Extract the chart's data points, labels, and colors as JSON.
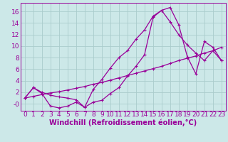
{
  "bg_color": "#cce8e8",
  "line_color": "#990099",
  "grid_color": "#aacccc",
  "xlabel": "Windchill (Refroidissement éolien,°C)",
  "xlim": [
    -0.5,
    23.5
  ],
  "ylim": [
    -1.2,
    17.5
  ],
  "xticks": [
    0,
    1,
    2,
    3,
    4,
    5,
    6,
    7,
    8,
    9,
    10,
    11,
    12,
    13,
    14,
    15,
    16,
    17,
    18,
    19,
    20,
    21,
    22,
    23
  ],
  "yticks": [
    0,
    2,
    4,
    6,
    8,
    10,
    12,
    14,
    16
  ],
  "ytick_labels": [
    "-0",
    "2",
    "4",
    "6",
    "8",
    "10",
    "12",
    "14",
    "16"
  ],
  "line1_x": [
    0,
    1,
    2,
    3,
    4,
    5,
    6,
    7,
    8,
    9,
    10,
    11,
    12,
    13,
    14,
    15,
    16,
    17,
    18,
    19,
    20,
    21,
    22,
    23
  ],
  "line1_y": [
    1.0,
    2.8,
    2.0,
    1.5,
    1.2,
    1.0,
    0.7,
    -0.6,
    0.3,
    0.6,
    1.8,
    2.8,
    4.8,
    6.5,
    8.5,
    15.0,
    16.2,
    16.7,
    13.7,
    8.2,
    5.2,
    10.8,
    9.8,
    7.5
  ],
  "line2_x": [
    0,
    1,
    2,
    3,
    4,
    5,
    6,
    7,
    8,
    9,
    10,
    11,
    12,
    13,
    14,
    15,
    16,
    17,
    18,
    19,
    20,
    21,
    22,
    23
  ],
  "line2_y": [
    1.0,
    1.3,
    1.6,
    1.9,
    2.1,
    2.4,
    2.7,
    3.0,
    3.4,
    3.7,
    4.1,
    4.5,
    4.9,
    5.3,
    5.7,
    6.1,
    6.5,
    7.0,
    7.5,
    7.9,
    8.3,
    8.8,
    9.2,
    7.5
  ],
  "line3_x": [
    0,
    1,
    2,
    3,
    4,
    5,
    6,
    7,
    8,
    9,
    10,
    11,
    12,
    13,
    14,
    15,
    16,
    17,
    18,
    19,
    20,
    21,
    22,
    23
  ],
  "line3_y": [
    1.0,
    2.8,
    1.8,
    -0.4,
    -0.7,
    -0.4,
    0.3,
    -0.6,
    2.5,
    4.2,
    6.2,
    8.0,
    9.2,
    11.2,
    12.8,
    15.2,
    16.2,
    14.2,
    12.0,
    10.2,
    8.8,
    7.5,
    9.2,
    9.8
  ],
  "xlabel_fontsize": 7.0,
  "tick_fontsize": 6.5,
  "marker": "+"
}
